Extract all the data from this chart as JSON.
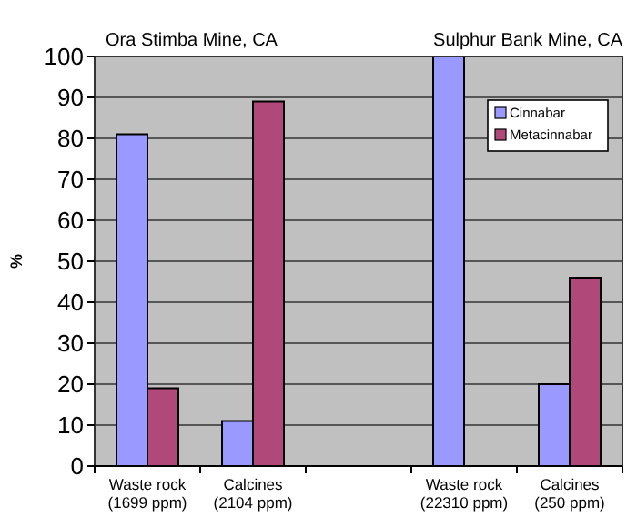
{
  "chart_data": {
    "type": "bar",
    "categories": [
      "Waste rock\n(1699 ppm)",
      "Calcines\n(2104 ppm)",
      null,
      "Waste rock\n(22310 ppm)",
      "Calcines\n(250 ppm)"
    ],
    "series": [
      {
        "name": "Cinnabar",
        "color": "#9999ff",
        "values": [
          81,
          11,
          null,
          100,
          20
        ]
      },
      {
        "name": "Metacinnabar",
        "color": "#b0497a",
        "values": [
          19,
          89,
          null,
          0,
          46
        ]
      }
    ],
    "ylabel": "%",
    "ylim": [
      0,
      100
    ],
    "yticks": [
      0,
      10,
      20,
      30,
      40,
      50,
      60,
      70,
      80,
      90,
      100
    ],
    "grid": "y",
    "legend": "top right",
    "annotations": [
      {
        "text": "Ora Stimba Mine, CA"
      },
      {
        "text": "Sulphur Bank Mine, CA"
      }
    ]
  }
}
